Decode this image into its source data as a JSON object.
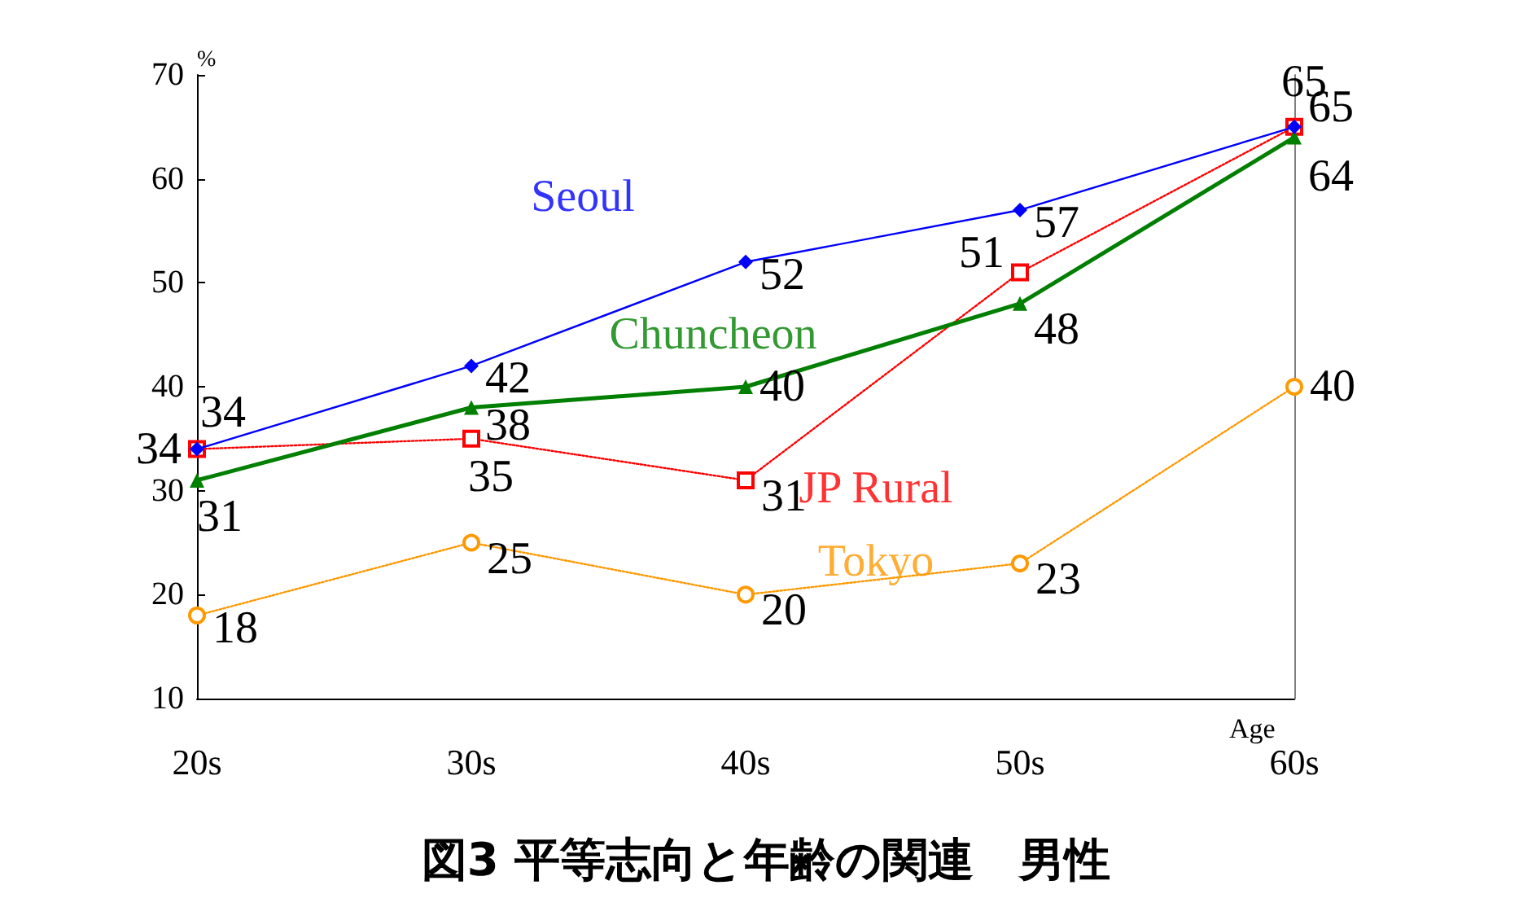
{
  "chart_data": {
    "type": "line",
    "title": "図3 平等志向と年齢の関連　男性",
    "xlabel": "Age",
    "ylabel": "%",
    "categories": [
      "20s",
      "30s",
      "40s",
      "50s",
      "60s"
    ],
    "series": [
      {
        "name": "Seoul",
        "color": "#0000ff",
        "values": [
          34,
          42,
          52,
          57,
          65
        ],
        "marker": "diamond",
        "line_style": "solid"
      },
      {
        "name": "Chuncheon",
        "color": "#007f00",
        "values": [
          31,
          38,
          40,
          48,
          64
        ],
        "marker": "triangle",
        "line_style": "solid"
      },
      {
        "name": "JP Rural",
        "color": "#ff0000",
        "values": [
          34,
          35,
          31,
          51,
          65
        ],
        "marker": "square",
        "line_style": "dotted"
      },
      {
        "name": "Tokyo",
        "color": "#ff9900",
        "values": [
          18,
          25,
          20,
          23,
          40
        ],
        "marker": "circle",
        "line_style": "dotted"
      }
    ],
    "ylim": [
      10,
      70
    ],
    "yticks": [
      10,
      20,
      30,
      40,
      50,
      60,
      70
    ],
    "grid": false,
    "legend": false,
    "data_labels": true
  }
}
